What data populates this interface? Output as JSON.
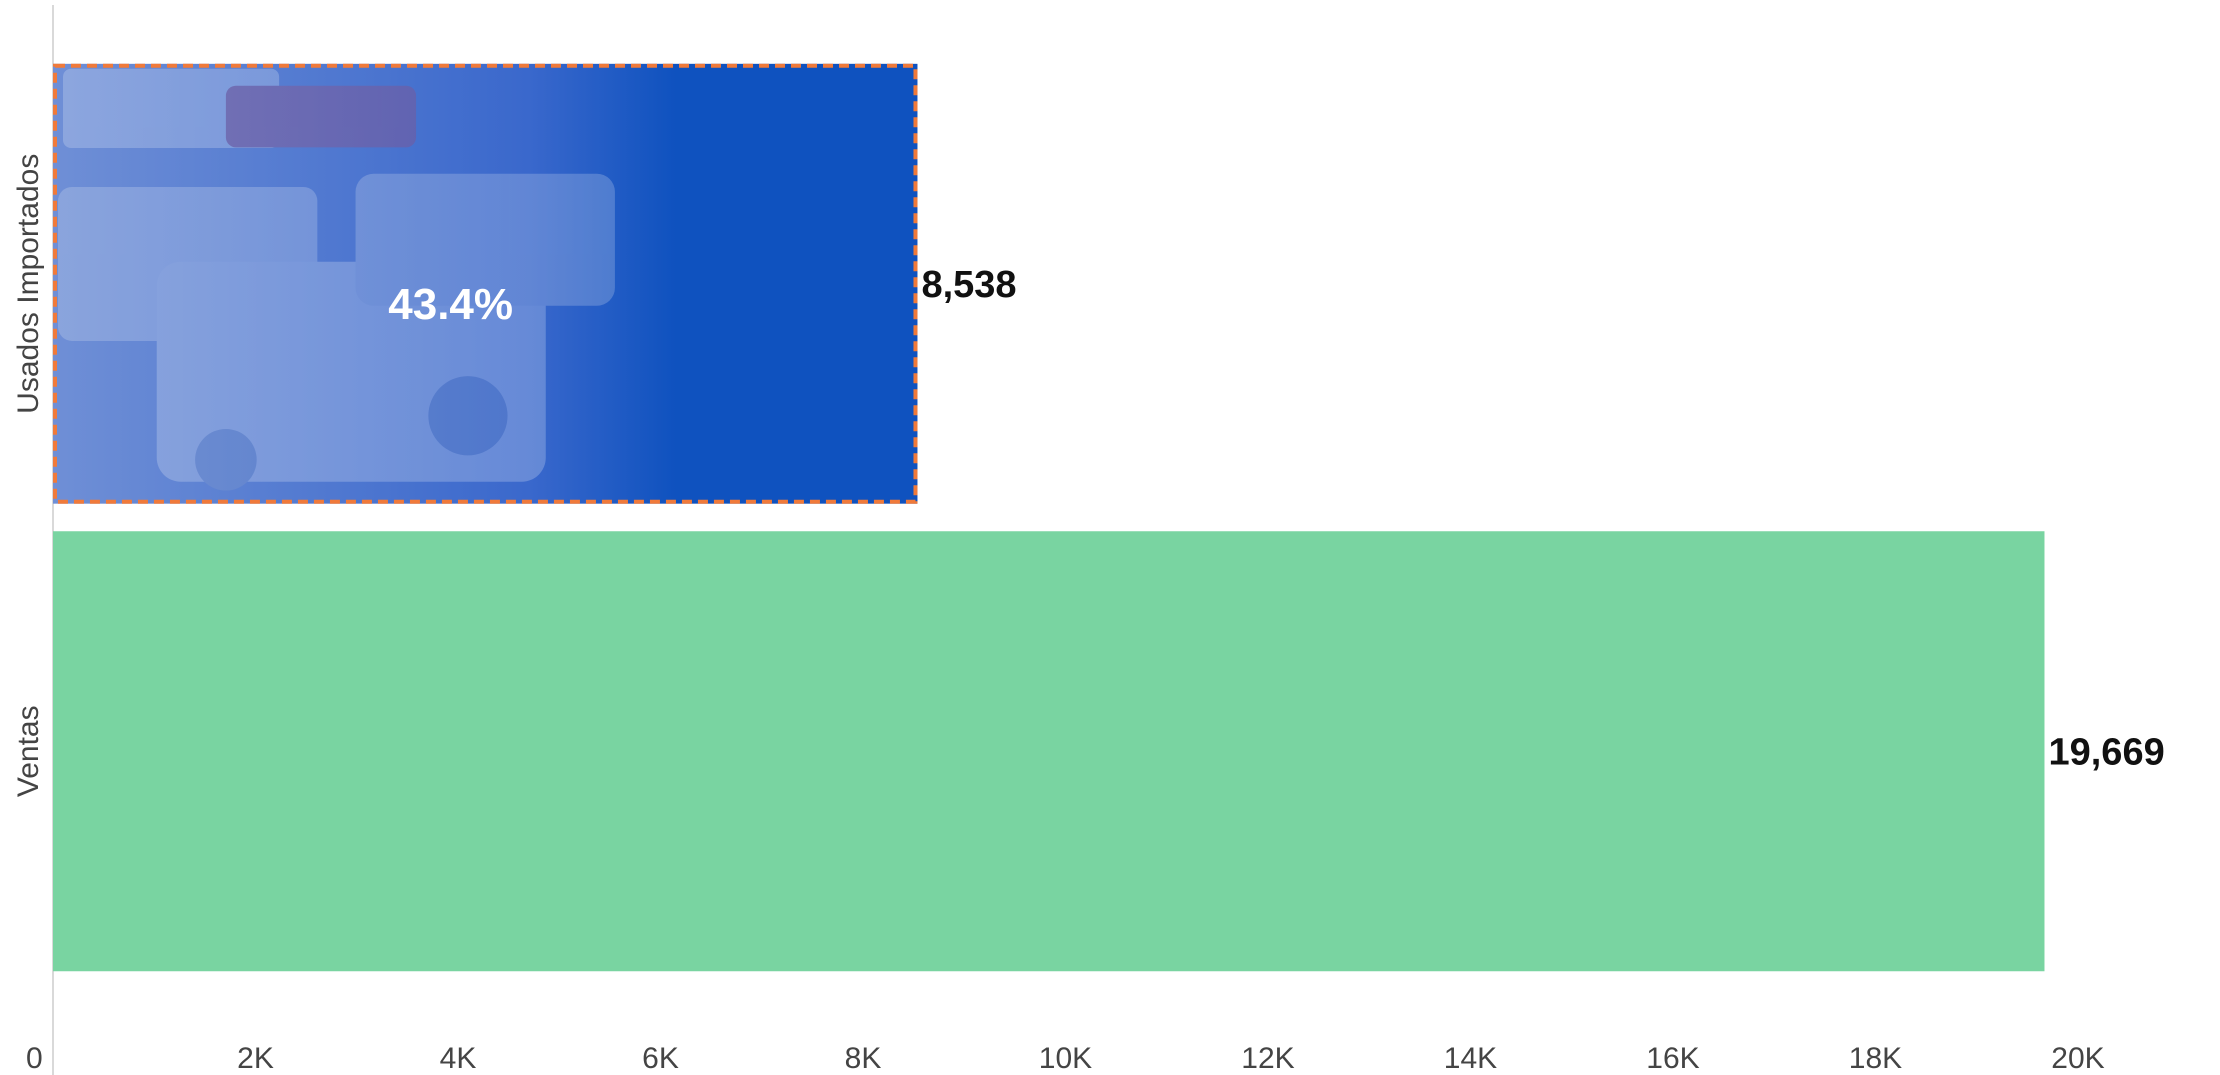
{
  "chart_data": {
    "type": "bar",
    "orientation": "horizontal",
    "categories": [
      "Usados Importados",
      "Ventas"
    ],
    "values": [
      8538,
      19669
    ],
    "value_labels": [
      "8,538",
      "19,669"
    ],
    "bar_colors": [
      "#0f52bf",
      "#79d4a1"
    ],
    "highlight_border_color": "#f07a3a",
    "annotation": {
      "category": "Usados Importados",
      "text": "43.4%"
    },
    "xlim": [
      0,
      20000
    ],
    "x_ticks": [
      0,
      2000,
      4000,
      6000,
      8000,
      10000,
      12000,
      14000,
      16000,
      18000,
      20000
    ],
    "x_tick_labels": [
      "0",
      "2K",
      "4K",
      "6K",
      "8K",
      "10K",
      "12K",
      "14K",
      "16K",
      "18K",
      "20K"
    ],
    "title": "",
    "xlabel": "",
    "ylabel": "",
    "grid": false,
    "legend": "none"
  }
}
